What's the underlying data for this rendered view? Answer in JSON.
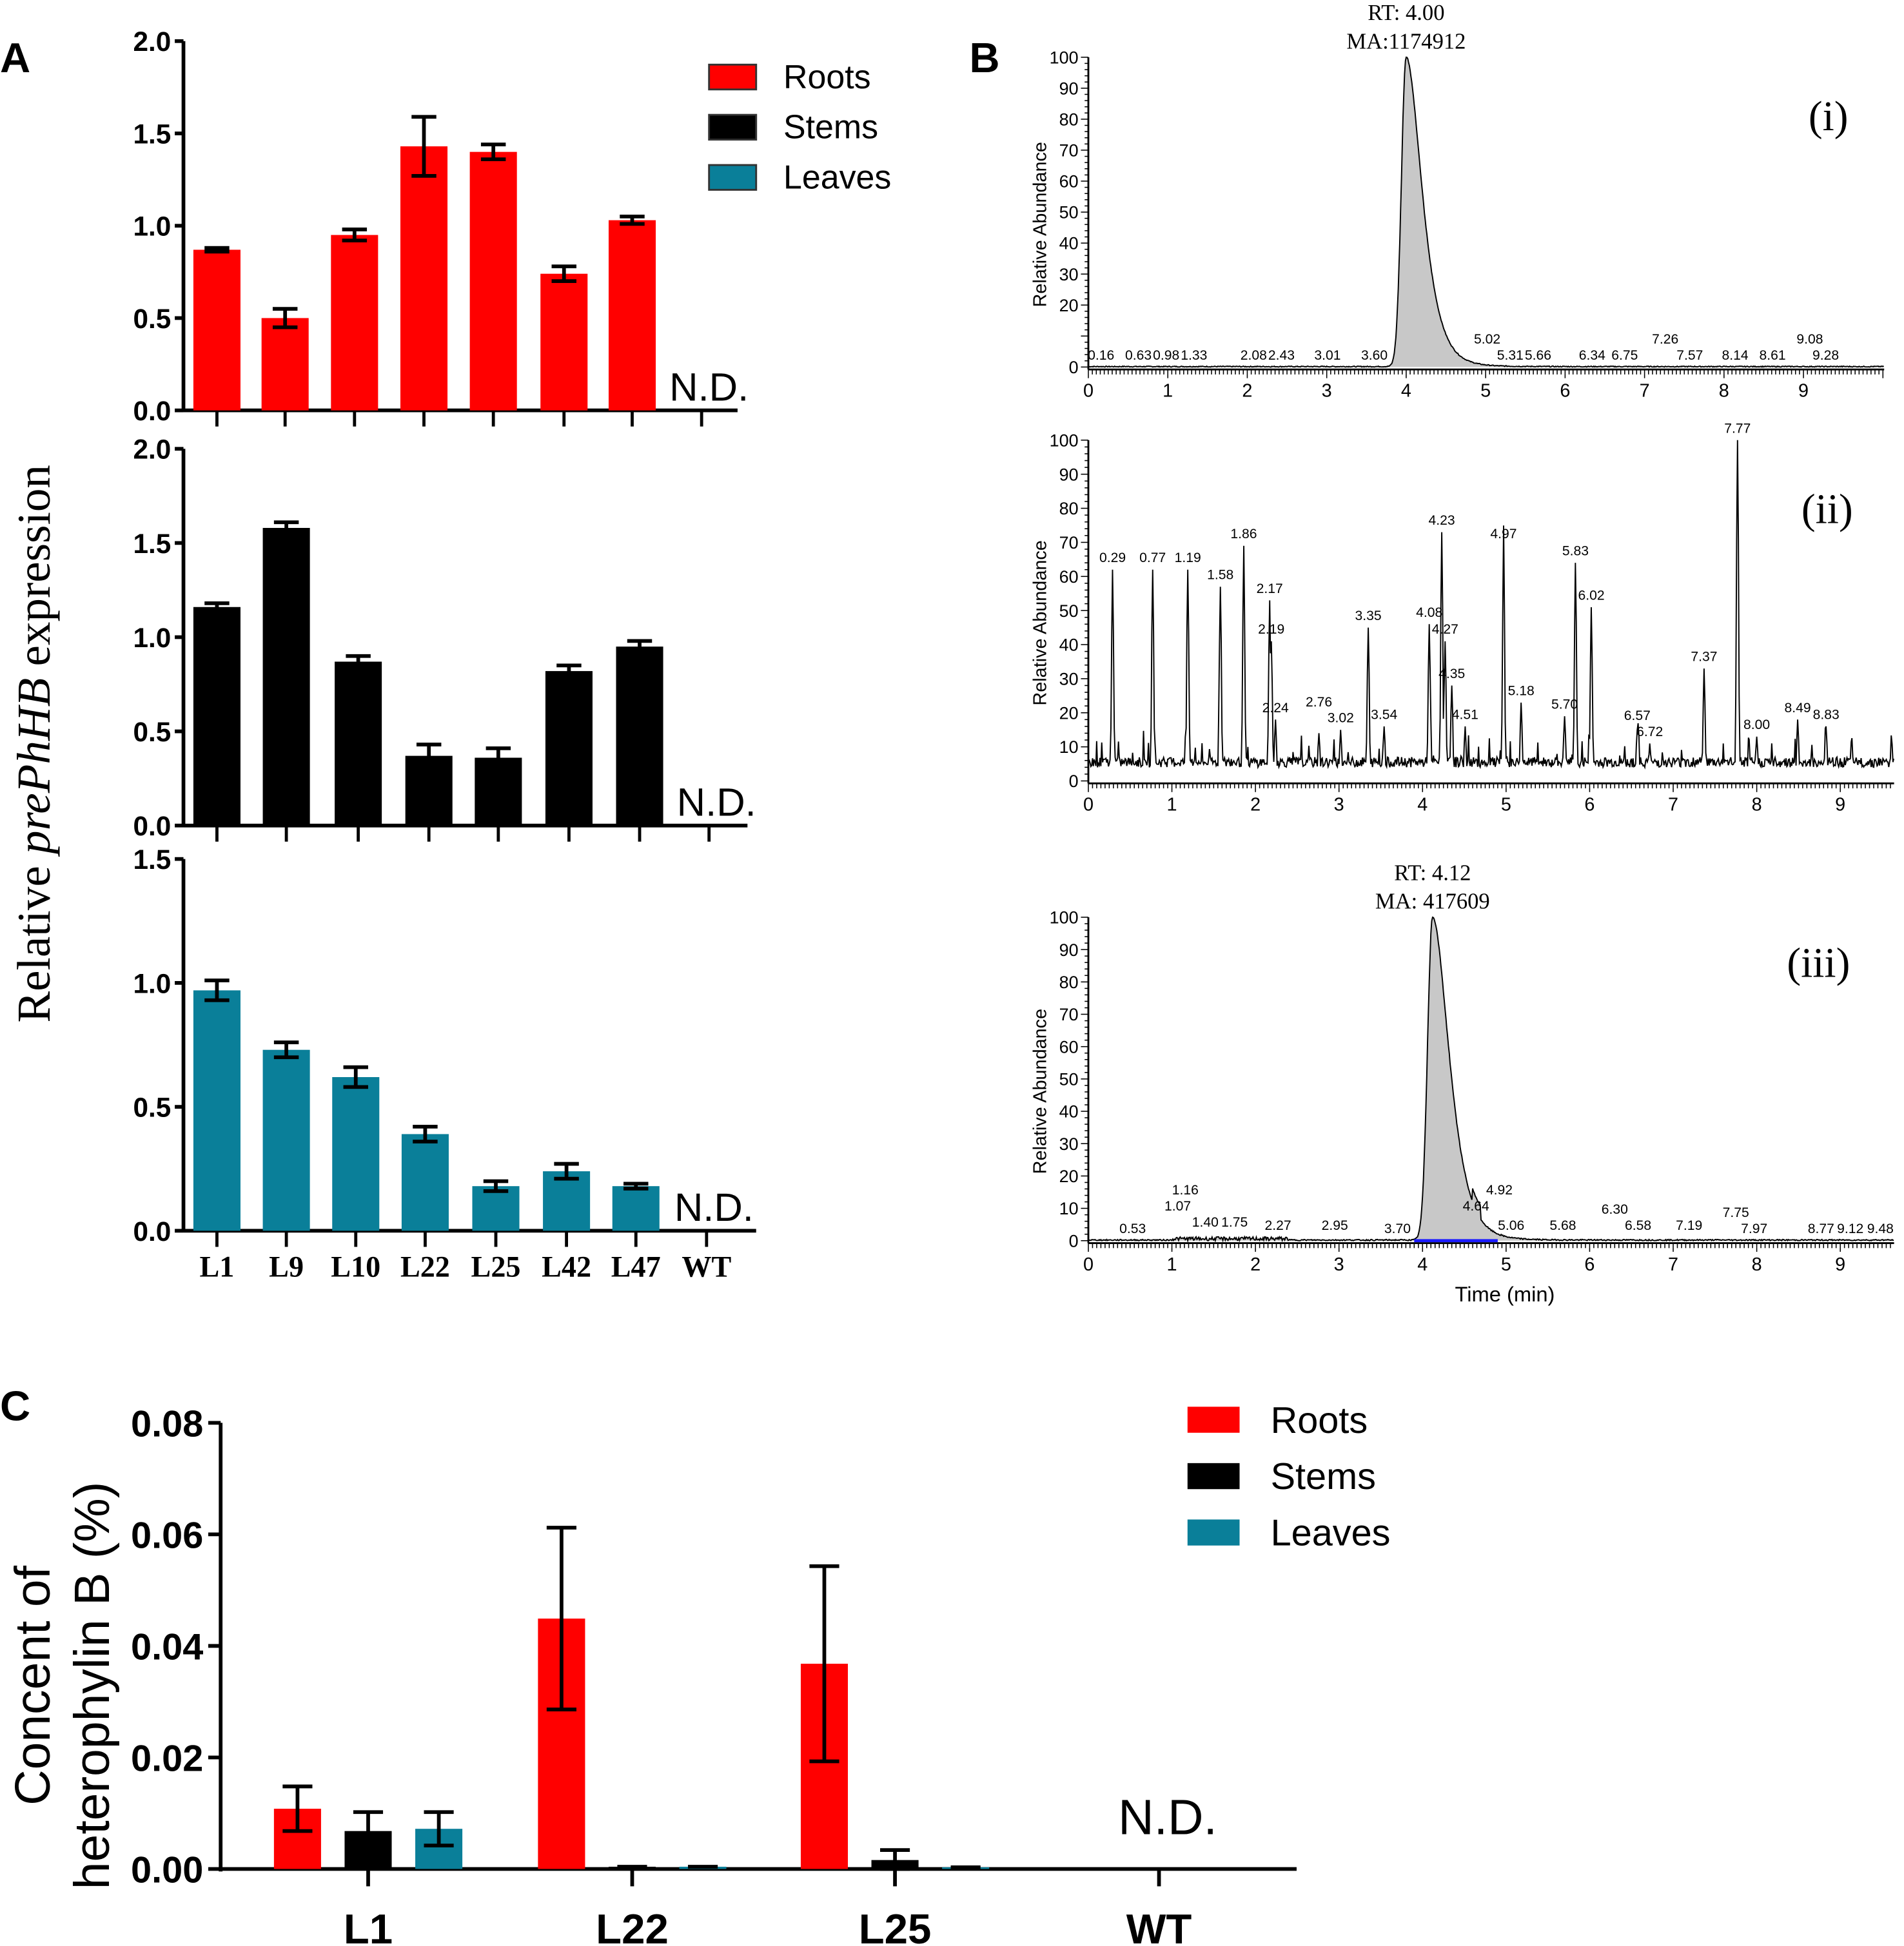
{
  "chart_data": [
    {
      "id": "A",
      "panel_label": "A",
      "type": "bar",
      "ylabel_prefix": "Relative ",
      "ylabel_italic": "prePhHB",
      "ylabel_suffix": " expression",
      "categories": [
        "L1",
        "L9",
        "L10",
        "L22",
        "L25",
        "L42",
        "L47",
        "WT"
      ],
      "legend": [
        {
          "name": "Roots",
          "color": "#ff0000"
        },
        {
          "name": "Stems",
          "color": "#000000"
        },
        {
          "name": "Leaves",
          "color": "#0a7f99"
        }
      ],
      "legend_position": "top-right",
      "annotation": "N.D.",
      "subplots": [
        {
          "series": "Roots",
          "color": "#ff0000",
          "ylim": [
            0,
            2.0
          ],
          "yticks": [
            "0.0",
            "0.5",
            "1.0",
            "1.5",
            "2.0"
          ],
          "values": [
            0.87,
            0.5,
            0.95,
            1.43,
            1.4,
            0.74,
            1.03,
            null
          ],
          "errors": [
            0.01,
            0.05,
            0.03,
            0.16,
            0.04,
            0.04,
            0.02,
            null
          ]
        },
        {
          "series": "Stems",
          "color": "#000000",
          "ylim": [
            0,
            2.0
          ],
          "yticks": [
            "0.0",
            "0.5",
            "1.0",
            "1.5",
            "2.0"
          ],
          "values": [
            1.16,
            1.58,
            0.87,
            0.37,
            0.36,
            0.82,
            0.95,
            null
          ],
          "errors": [
            0.02,
            0.03,
            0.03,
            0.06,
            0.05,
            0.03,
            0.03,
            null
          ]
        },
        {
          "series": "Leaves",
          "color": "#0a7f99",
          "ylim": [
            0,
            1.5
          ],
          "yticks": [
            "0.0",
            "0.5",
            "1.0",
            "1.5"
          ],
          "values": [
            0.97,
            0.73,
            0.62,
            0.39,
            0.18,
            0.24,
            0.18,
            null
          ],
          "errors": [
            0.04,
            0.03,
            0.04,
            0.03,
            0.02,
            0.03,
            0.01,
            null
          ]
        }
      ]
    },
    {
      "id": "B",
      "panel_label": "B",
      "type": "line",
      "ylabel": "Relative Abundance",
      "xlabel": "Time (min)",
      "ylim": [
        0,
        100
      ],
      "xticks": [
        "0",
        "1",
        "2",
        "3",
        "4",
        "5",
        "6",
        "7",
        "8",
        "9"
      ],
      "yticks_i": [
        "0",
        "20",
        "30",
        "40",
        "50",
        "60",
        "70",
        "80",
        "90",
        "100"
      ],
      "yticks": [
        "0",
        "10",
        "20",
        "30",
        "40",
        "50",
        "60",
        "70",
        "80",
        "90",
        "100"
      ],
      "chromatograms": [
        {
          "label": "(i)",
          "header": [
            "RT: 4.00",
            "MA:1174912"
          ],
          "main_peak_rt": 4.0,
          "filled": true,
          "peaks": [
            [
              0.16,
              0
            ],
            [
              0.63,
              0
            ],
            [
              0.98,
              0
            ],
            [
              1.33,
              0
            ],
            [
              2.08,
              0
            ],
            [
              2.43,
              0
            ],
            [
              3.01,
              0
            ],
            [
              3.6,
              0
            ],
            [
              5.02,
              0
            ],
            [
              5.31,
              0
            ],
            [
              5.66,
              0
            ],
            [
              6.34,
              0
            ],
            [
              6.75,
              0
            ],
            [
              7.26,
              0
            ],
            [
              7.57,
              0
            ],
            [
              8.14,
              0
            ],
            [
              8.61,
              0
            ],
            [
              9.08,
              0
            ],
            [
              9.28,
              0
            ]
          ]
        },
        {
          "label": "(ii)",
          "header": [],
          "filled": false,
          "peaks": [
            [
              0.29,
              62
            ],
            [
              0.77,
              62
            ],
            [
              1.19,
              62
            ],
            [
              1.58,
              57
            ],
            [
              1.86,
              69
            ],
            [
              2.17,
              53
            ],
            [
              2.19,
              41
            ],
            [
              2.24,
              18
            ],
            [
              2.76,
              14
            ],
            [
              3.02,
              15
            ],
            [
              3.35,
              45
            ],
            [
              3.54,
              16
            ],
            [
              4.08,
              46
            ],
            [
              4.23,
              73
            ],
            [
              4.27,
              41
            ],
            [
              4.35,
              28
            ],
            [
              4.51,
              16
            ],
            [
              4.97,
              69
            ],
            [
              5.18,
              23
            ],
            [
              5.7,
              19
            ],
            [
              5.83,
              64
            ],
            [
              6.02,
              51
            ],
            [
              6.57,
              15
            ],
            [
              6.72,
              11
            ],
            [
              7.37,
              33
            ],
            [
              7.77,
              100
            ],
            [
              8.0,
              13
            ],
            [
              8.49,
              18
            ],
            [
              8.83,
              16
            ]
          ]
        },
        {
          "label": "(iii)",
          "header": [
            "RT: 4.12",
            "MA: 417609"
          ],
          "main_peak_rt": 4.12,
          "filled": true,
          "peaks": [
            [
              0.53,
              0
            ],
            [
              1.07,
              0
            ],
            [
              1.16,
              2
            ],
            [
              1.4,
              2
            ],
            [
              1.75,
              2
            ],
            [
              2.27,
              1
            ],
            [
              2.95,
              1
            ],
            [
              3.7,
              0
            ],
            [
              4.64,
              7
            ],
            [
              4.92,
              2
            ],
            [
              5.06,
              1
            ],
            [
              5.68,
              1
            ],
            [
              6.3,
              1
            ],
            [
              6.58,
              1
            ],
            [
              7.19,
              1
            ],
            [
              7.75,
              0
            ],
            [
              7.97,
              0
            ],
            [
              8.77,
              0
            ],
            [
              9.12,
              0
            ],
            [
              9.48,
              0
            ]
          ]
        }
      ]
    },
    {
      "id": "C",
      "panel_label": "C",
      "type": "bar",
      "ylabel": [
        "Concent of",
        "heterophylin B (%)"
      ],
      "categories": [
        "L1",
        "L22",
        "L25",
        "WT"
      ],
      "ylim": [
        0,
        0.08
      ],
      "yticks": [
        "0.00",
        "0.02",
        "0.04",
        "0.06",
        "0.08"
      ],
      "legend_position": "top-right",
      "annotation": "N.D.",
      "series": [
        {
          "name": "Roots",
          "color": "#ff0000",
          "values": [
            0.0108,
            0.0449,
            0.0368,
            null
          ],
          "errors": [
            0.004,
            0.0163,
            0.0175,
            null
          ]
        },
        {
          "name": "Stems",
          "color": "#000000",
          "values": [
            0.0068,
            0.0004,
            0.0016,
            null
          ],
          "errors": [
            0.0034,
            0,
            0.0018,
            null
          ]
        },
        {
          "name": "Leaves",
          "color": "#0a7f99",
          "values": [
            0.0072,
            0.0004,
            0.0003,
            null
          ],
          "errors": [
            0.003,
            0,
            0,
            null
          ]
        }
      ]
    }
  ]
}
